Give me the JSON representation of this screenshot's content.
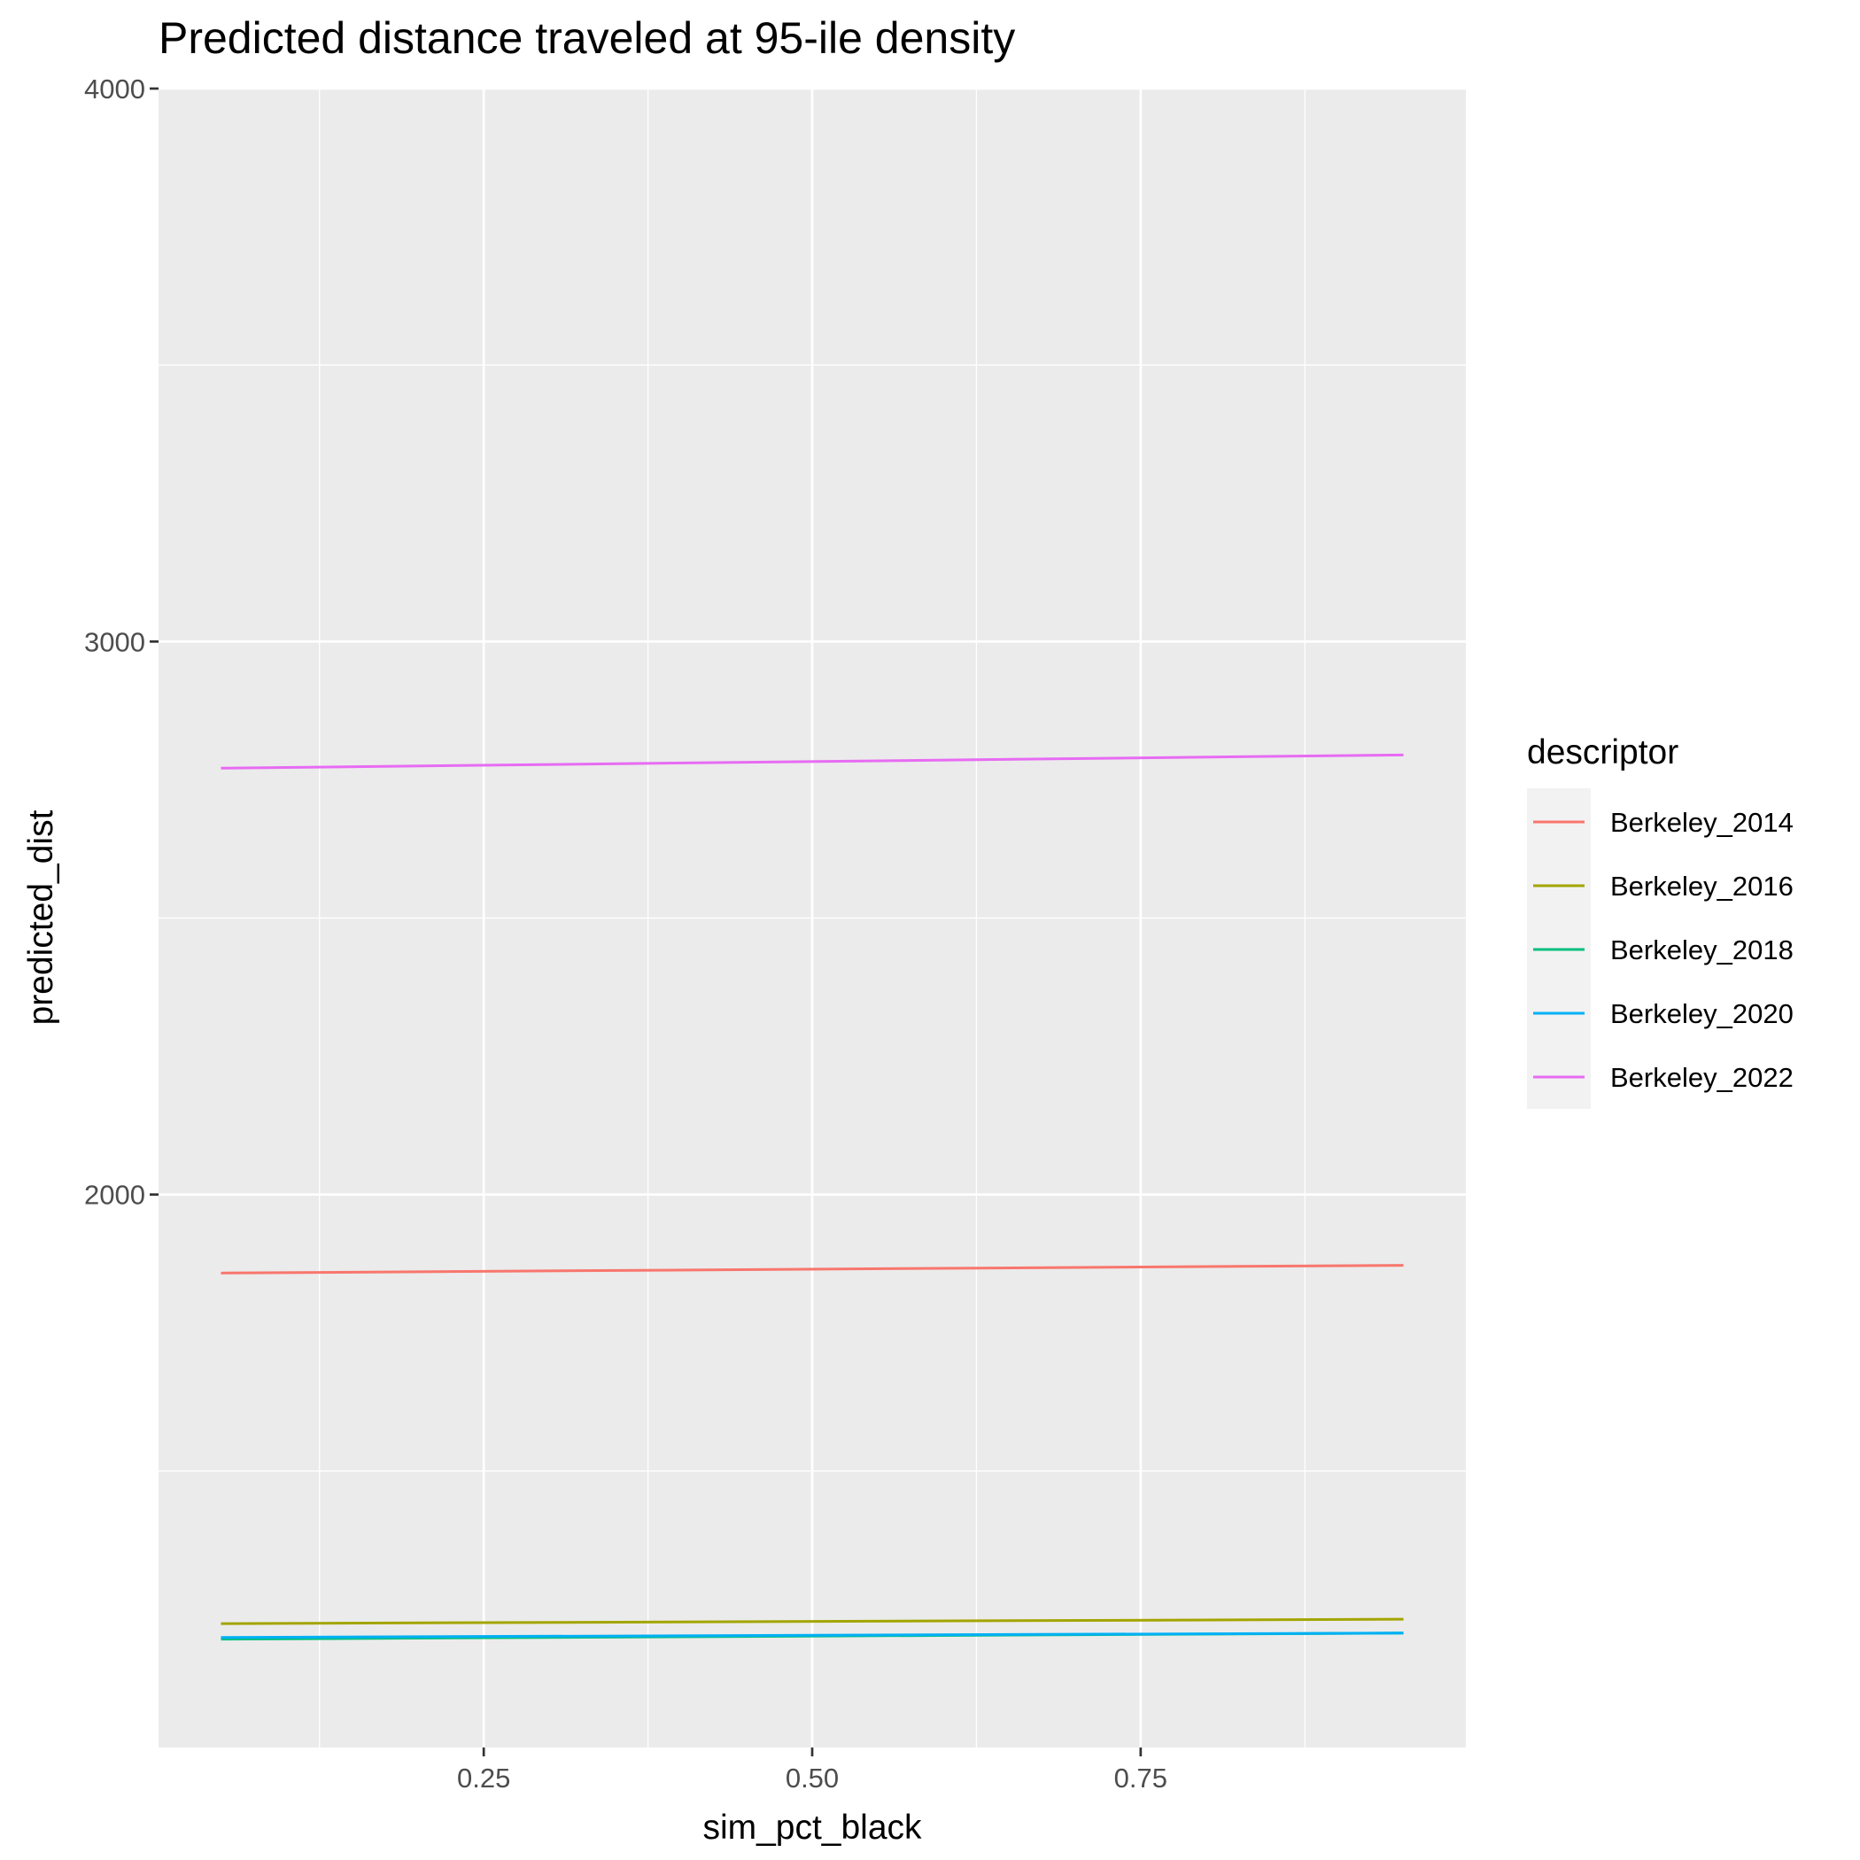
{
  "chart_data": {
    "type": "line",
    "title": "Predicted distance traveled at 95-ile density",
    "xlabel": "sim_pct_black",
    "ylabel": "predicted_dist",
    "xlim": [
      0.0025,
      0.9975
    ],
    "ylim": [
      1000,
      4000
    ],
    "x_ticks": [
      0.25,
      0.5,
      0.75
    ],
    "x_tick_labels": [
      "0.25",
      "0.50",
      "0.75"
    ],
    "x_minor_ticks": [
      0.125,
      0.375,
      0.625,
      0.875
    ],
    "y_ticks": [
      2000,
      3000,
      4000
    ],
    "y_tick_labels": [
      "2000",
      "3000",
      "4000"
    ],
    "y_minor_ticks": [
      1500,
      2500,
      3500
    ],
    "grid": true,
    "legend": {
      "title": "descriptor",
      "position": "right"
    },
    "x": [
      0.05,
      0.95
    ],
    "series": [
      {
        "name": "Berkeley_2014",
        "color": "#F8766D",
        "values": [
          1858,
          1872
        ]
      },
      {
        "name": "Berkeley_2016",
        "color": "#A3A500",
        "values": [
          1224,
          1232
        ]
      },
      {
        "name": "Berkeley_2018",
        "color": "#00BF7D",
        "values": [
          1196,
          1207
        ]
      },
      {
        "name": "Berkeley_2020",
        "color": "#00B0F6",
        "values": [
          1199,
          1207
        ]
      },
      {
        "name": "Berkeley_2022",
        "color": "#E76BF3",
        "values": [
          2771,
          2795
        ]
      }
    ]
  }
}
